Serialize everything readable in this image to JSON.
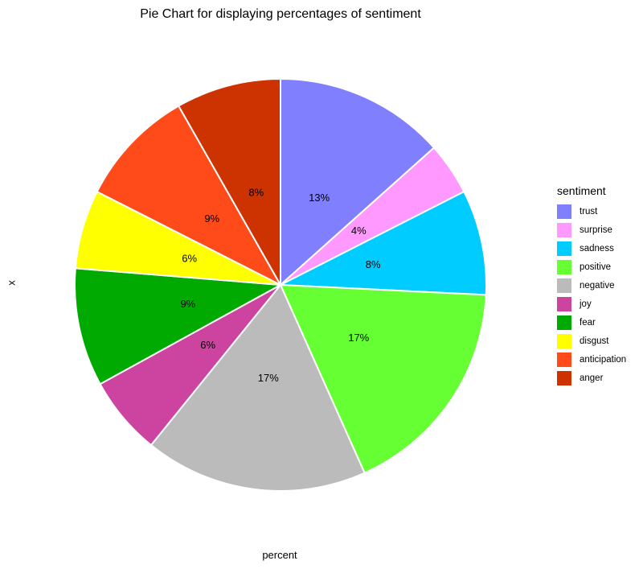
{
  "chart_data": {
    "type": "pie",
    "title": "Pie Chart for displaying percentages of sentiment",
    "xlabel": "percent",
    "ylabel": "x",
    "legend": {
      "title": "sentiment",
      "position": "right"
    },
    "slices": [
      {
        "name": "trust",
        "percent": 13,
        "color": "#8080FF"
      },
      {
        "name": "surprise",
        "percent": 4,
        "color": "#FF99FF"
      },
      {
        "name": "sadness",
        "percent": 8,
        "color": "#00CCFF"
      },
      {
        "name": "positive",
        "percent": 17,
        "color": "#66FF33"
      },
      {
        "name": "negative",
        "percent": 17,
        "color": "#BBBBBB"
      },
      {
        "name": "joy",
        "percent": 6,
        "color": "#CC44A0"
      },
      {
        "name": "fear",
        "percent": 9,
        "color": "#00AA00"
      },
      {
        "name": "disgust",
        "percent": 6,
        "color": "#FFFF00"
      },
      {
        "name": "anticipation",
        "percent": 9,
        "color": "#FF4A1A"
      },
      {
        "name": "anger",
        "percent": 8,
        "color": "#CC3300"
      }
    ]
  }
}
